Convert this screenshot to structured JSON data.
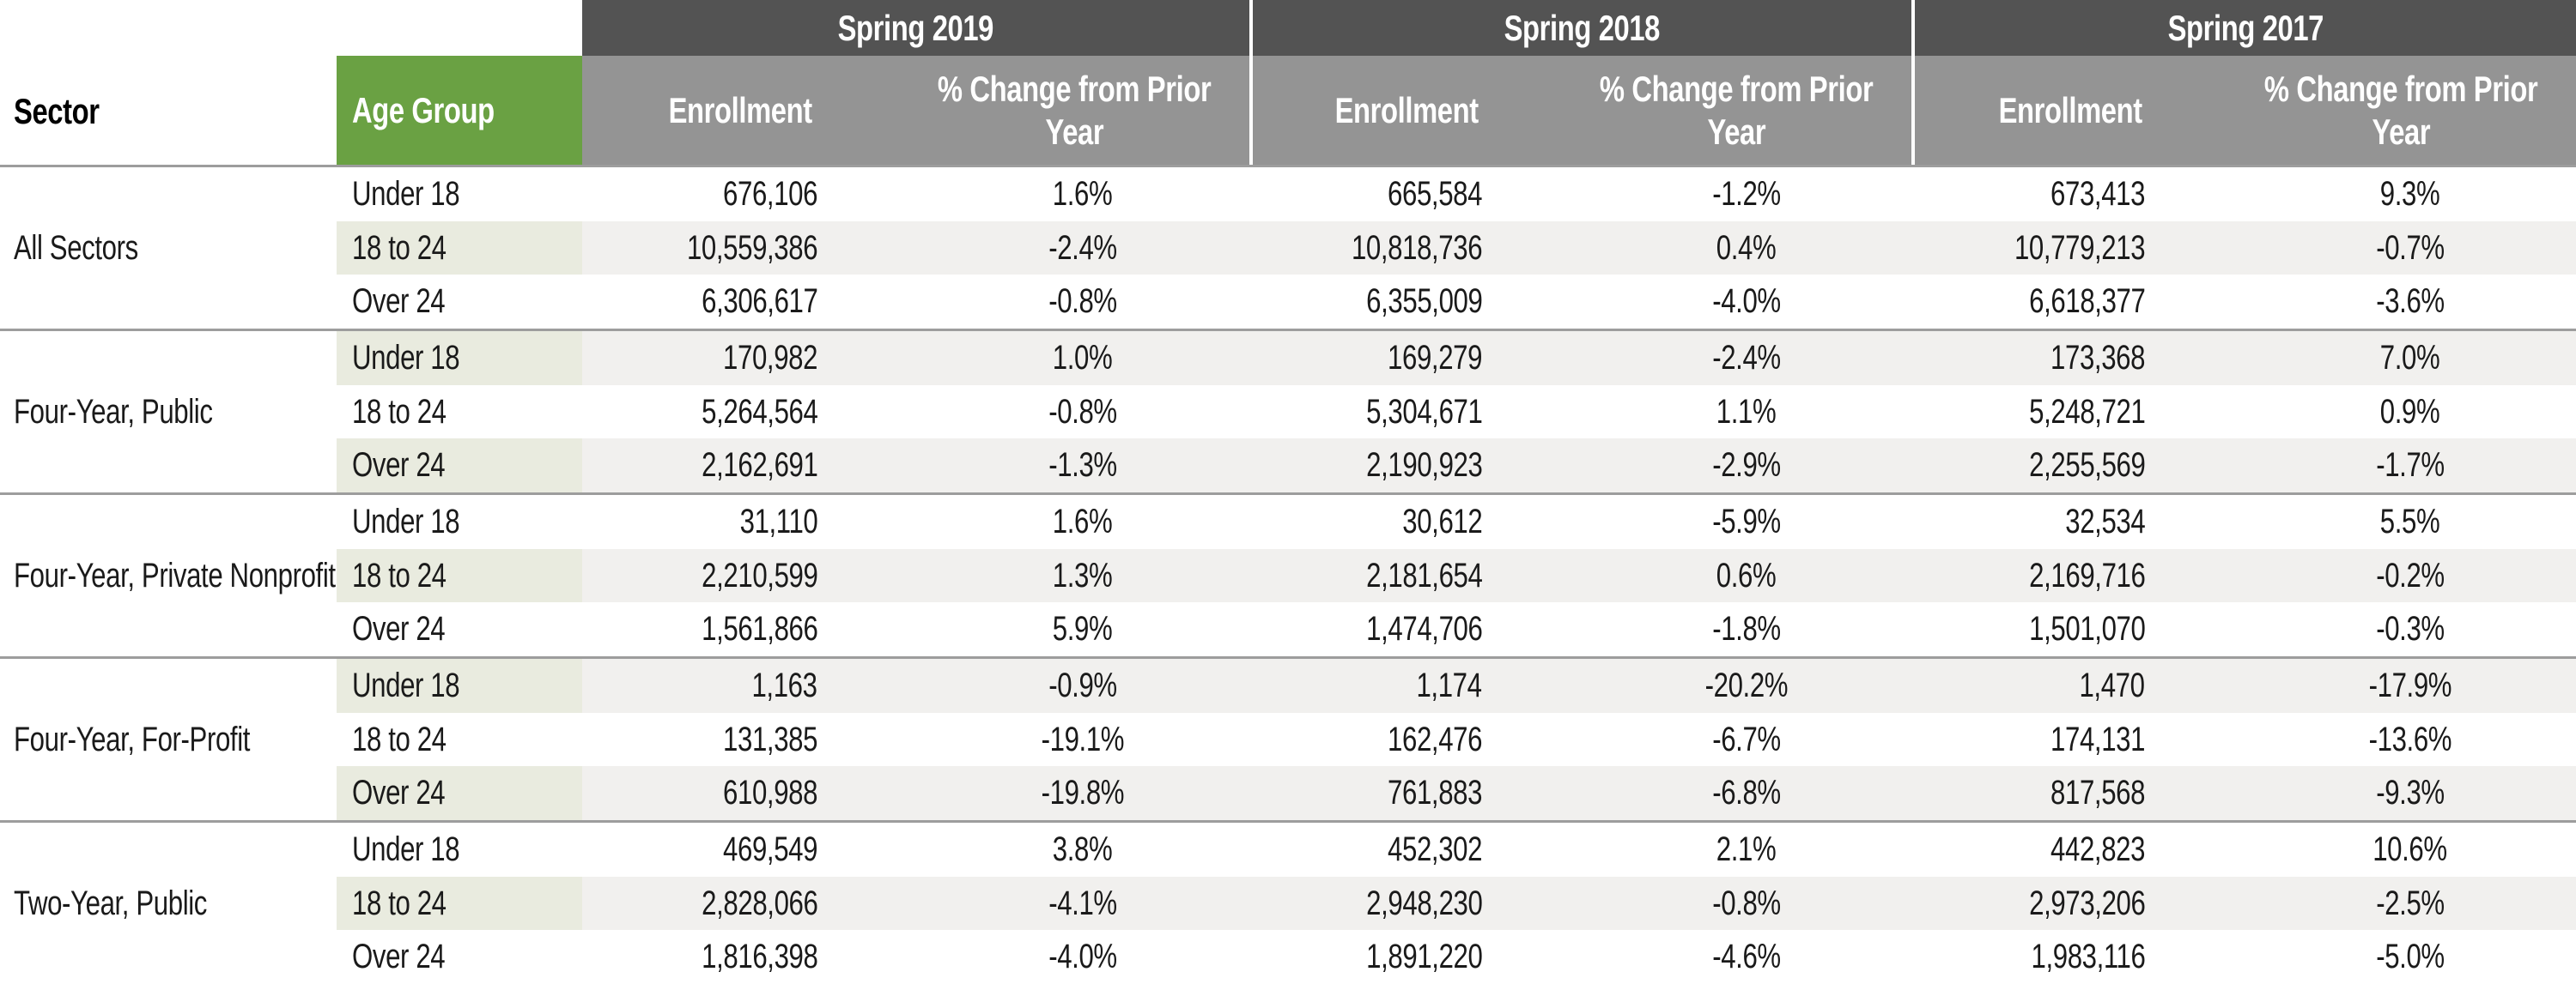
{
  "colors": {
    "green": "#6aa143",
    "tintgreen": "#e9ebdf",
    "dark": "#535353",
    "mid": "#949494",
    "stripe": "#f1f0ee"
  },
  "header": {
    "sector": "Sector",
    "age_group": "Age Group",
    "enrollment": "Enrollment",
    "pct_line1": "% Change from Prior",
    "pct_line2": "Year",
    "years": [
      "Spring 2019",
      "Spring 2018",
      "Spring 2017"
    ]
  },
  "table": {
    "sectors": [
      {
        "name": "All Sectors",
        "rows": [
          {
            "age": "Under 18",
            "s2019": {
              "enr": "676,106",
              "pct": "1.6%"
            },
            "s2018": {
              "enr": "665,584",
              "pct": "-1.2%"
            },
            "s2017": {
              "enr": "673,413",
              "pct": "9.3%"
            }
          },
          {
            "age": "18 to 24",
            "s2019": {
              "enr": "10,559,386",
              "pct": "-2.4%"
            },
            "s2018": {
              "enr": "10,818,736",
              "pct": "0.4%"
            },
            "s2017": {
              "enr": "10,779,213",
              "pct": "-0.7%"
            }
          },
          {
            "age": "Over 24",
            "s2019": {
              "enr": "6,306,617",
              "pct": "-0.8%"
            },
            "s2018": {
              "enr": "6,355,009",
              "pct": "-4.0%"
            },
            "s2017": {
              "enr": "6,618,377",
              "pct": "-3.6%"
            }
          }
        ]
      },
      {
        "name": "Four-Year, Public",
        "rows": [
          {
            "age": "Under 18",
            "s2019": {
              "enr": "170,982",
              "pct": "1.0%"
            },
            "s2018": {
              "enr": "169,279",
              "pct": "-2.4%"
            },
            "s2017": {
              "enr": "173,368",
              "pct": "7.0%"
            }
          },
          {
            "age": "18 to 24",
            "s2019": {
              "enr": "5,264,564",
              "pct": "-0.8%"
            },
            "s2018": {
              "enr": "5,304,671",
              "pct": "1.1%"
            },
            "s2017": {
              "enr": "5,248,721",
              "pct": "0.9%"
            }
          },
          {
            "age": "Over 24",
            "s2019": {
              "enr": "2,162,691",
              "pct": "-1.3%"
            },
            "s2018": {
              "enr": "2,190,923",
              "pct": "-2.9%"
            },
            "s2017": {
              "enr": "2,255,569",
              "pct": "-1.7%"
            }
          }
        ]
      },
      {
        "name": "Four-Year, Private Nonprofit",
        "rows": [
          {
            "age": "Under 18",
            "s2019": {
              "enr": "31,110",
              "pct": "1.6%"
            },
            "s2018": {
              "enr": "30,612",
              "pct": "-5.9%"
            },
            "s2017": {
              "enr": "32,534",
              "pct": "5.5%"
            }
          },
          {
            "age": "18 to 24",
            "s2019": {
              "enr": "2,210,599",
              "pct": "1.3%"
            },
            "s2018": {
              "enr": "2,181,654",
              "pct": "0.6%"
            },
            "s2017": {
              "enr": "2,169,716",
              "pct": "-0.2%"
            }
          },
          {
            "age": "Over 24",
            "s2019": {
              "enr": "1,561,866",
              "pct": "5.9%"
            },
            "s2018": {
              "enr": "1,474,706",
              "pct": "-1.8%"
            },
            "s2017": {
              "enr": "1,501,070",
              "pct": "-0.3%"
            }
          }
        ]
      },
      {
        "name": "Four-Year, For-Profit",
        "rows": [
          {
            "age": "Under 18",
            "s2019": {
              "enr": "1,163",
              "pct": "-0.9%"
            },
            "s2018": {
              "enr": "1,174",
              "pct": "-20.2%"
            },
            "s2017": {
              "enr": "1,470",
              "pct": "-17.9%"
            }
          },
          {
            "age": "18 to 24",
            "s2019": {
              "enr": "131,385",
              "pct": "-19.1%"
            },
            "s2018": {
              "enr": "162,476",
              "pct": "-6.7%"
            },
            "s2017": {
              "enr": "174,131",
              "pct": "-13.6%"
            }
          },
          {
            "age": "Over 24",
            "s2019": {
              "enr": "610,988",
              "pct": "-19.8%"
            },
            "s2018": {
              "enr": "761,883",
              "pct": "-6.8%"
            },
            "s2017": {
              "enr": "817,568",
              "pct": "-9.3%"
            }
          }
        ]
      },
      {
        "name": "Two-Year, Public",
        "rows": [
          {
            "age": "Under 18",
            "s2019": {
              "enr": "469,549",
              "pct": "3.8%"
            },
            "s2018": {
              "enr": "452,302",
              "pct": "2.1%"
            },
            "s2017": {
              "enr": "442,823",
              "pct": "10.6%"
            }
          },
          {
            "age": "18 to 24",
            "s2019": {
              "enr": "2,828,066",
              "pct": "-4.1%"
            },
            "s2018": {
              "enr": "2,948,230",
              "pct": "-0.8%"
            },
            "s2017": {
              "enr": "2,973,206",
              "pct": "-2.5%"
            }
          },
          {
            "age": "Over 24",
            "s2019": {
              "enr": "1,816,398",
              "pct": "-4.0%"
            },
            "s2018": {
              "enr": "1,891,220",
              "pct": "-4.6%"
            },
            "s2017": {
              "enr": "1,983,116",
              "pct": "-5.0%"
            }
          }
        ]
      }
    ]
  }
}
